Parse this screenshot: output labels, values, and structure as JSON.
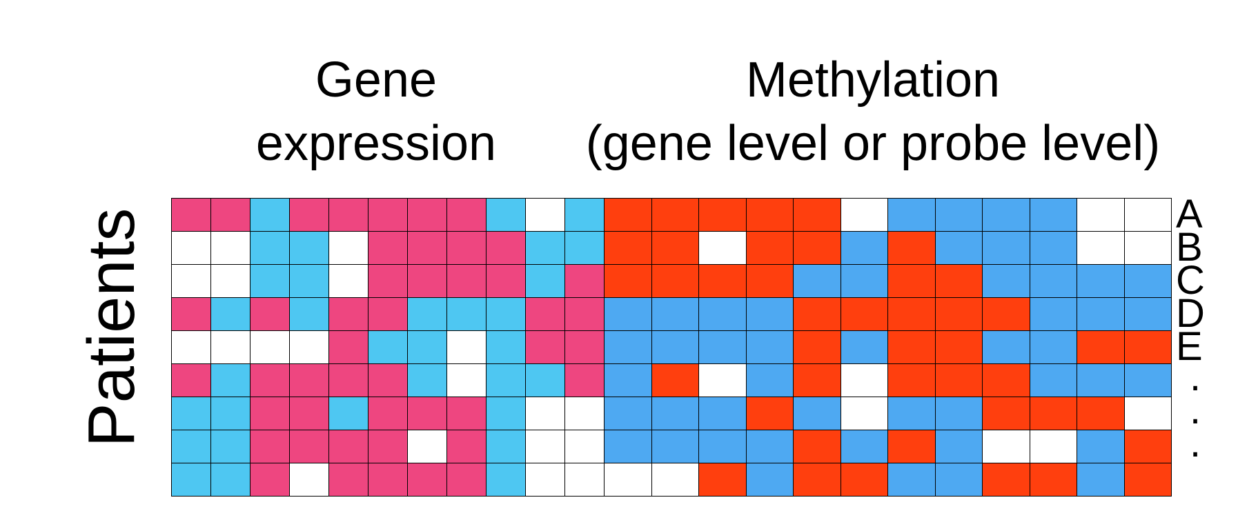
{
  "titles": {
    "gene_line1": "Gene",
    "gene_line2": "expression",
    "meth_line1": "Methylation",
    "meth_line2": "(gene level or probe level)"
  },
  "y_label": "Patients",
  "row_labels": [
    "A",
    "B",
    "C",
    "D",
    "E",
    ".",
    ".",
    "."
  ],
  "colors": {
    "P": "#EE4680",
    "C": "#4EC7F2",
    "R": "#FF3F0E",
    "B": "#4EA9F2",
    "W": "#FFFFFF"
  },
  "gene_expression": [
    "PPCPPPPPCWC",
    "WWCCWPPPPCC",
    "WWCCWPPPPCP",
    "PCPCPPCCCPP",
    "WWWWPCCWCPP",
    "PCPPPPCWCCP",
    "CCPPCPPPCWW",
    "CCPPPPWPCWW",
    "CCPWPPPPCWW"
  ],
  "methylation": [
    "RRRRRWBBBBWW",
    "RRWRRBRBBBWW",
    "RRRRBBRRBBBB",
    "BBBBRRRRRBBB",
    "BBBBRBRRBBRR",
    "BRWBRWRRRBBB",
    "BBBRBWBBRRRW",
    "BBBBRBRBWWBR",
    "WWRBRRBBRRBR"
  ]
}
